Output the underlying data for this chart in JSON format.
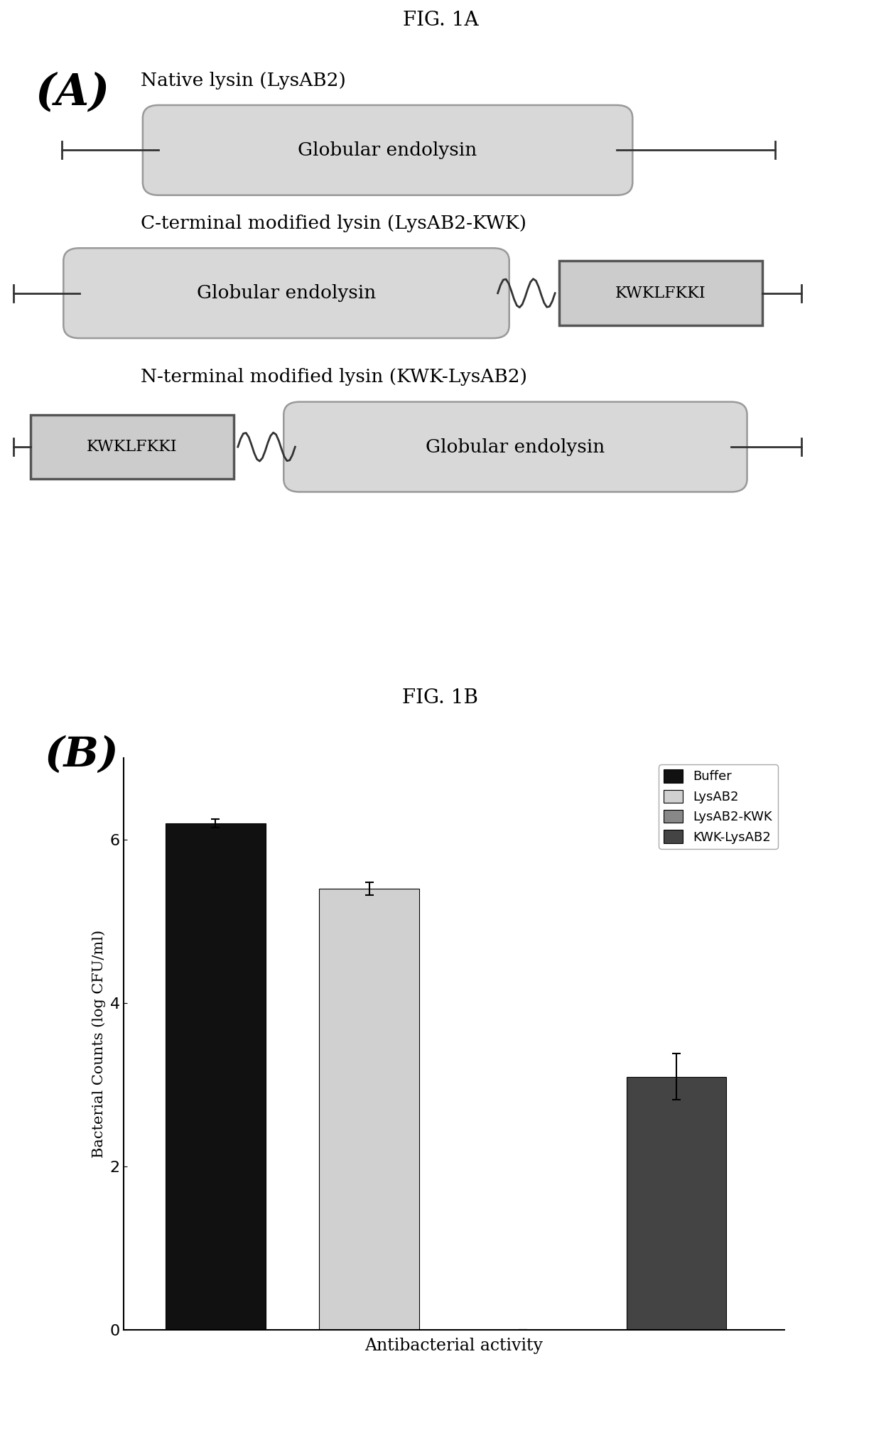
{
  "fig_title_A": "FIG. 1A",
  "fig_title_B": "FIG. 1B",
  "panel_A_label": "(A)",
  "panel_B_label": "(B)",
  "diagram": {
    "row1_label": "Native lysin (LysAB2)",
    "row2_label": "C-terminal modified lysin (LysAB2-KWK)",
    "row3_label": "N-terminal modified lysin (KWK-LysAB2)",
    "globular_text": "Globular endolysin",
    "kwk_text": "KWKLFKKI",
    "globular_facecolor": "#d8d8d8",
    "globular_edgecolor": "#999999",
    "kwk_facecolor": "#cccccc",
    "kwk_edgecolor": "#555555"
  },
  "bar_chart": {
    "categories": [
      "Buffer",
      "LysAB2",
      "LysAB2-KWK",
      "KWK-LysAB2"
    ],
    "values": [
      6.2,
      5.4,
      0.0,
      3.1
    ],
    "errors": [
      0.05,
      0.08,
      0.0,
      0.28
    ],
    "colors": [
      "#111111",
      "#d0d0d0",
      "#888888",
      "#444444"
    ],
    "bar_positions": [
      1,
      2,
      3,
      4
    ],
    "xlabel": "Antibacterial activity",
    "ylabel": "Bacterial Counts (log CFU/ml)",
    "ylim": [
      0,
      7
    ],
    "yticks": [
      0,
      2,
      4,
      6
    ],
    "legend_labels": [
      "Buffer",
      "LysAB2",
      "LysAB2-KWK",
      "KWK-LysAB2"
    ],
    "legend_colors": [
      "#111111",
      "#d0d0d0",
      "#888888",
      "#444444"
    ]
  },
  "background_color": "#ffffff",
  "text_color": "#000000"
}
